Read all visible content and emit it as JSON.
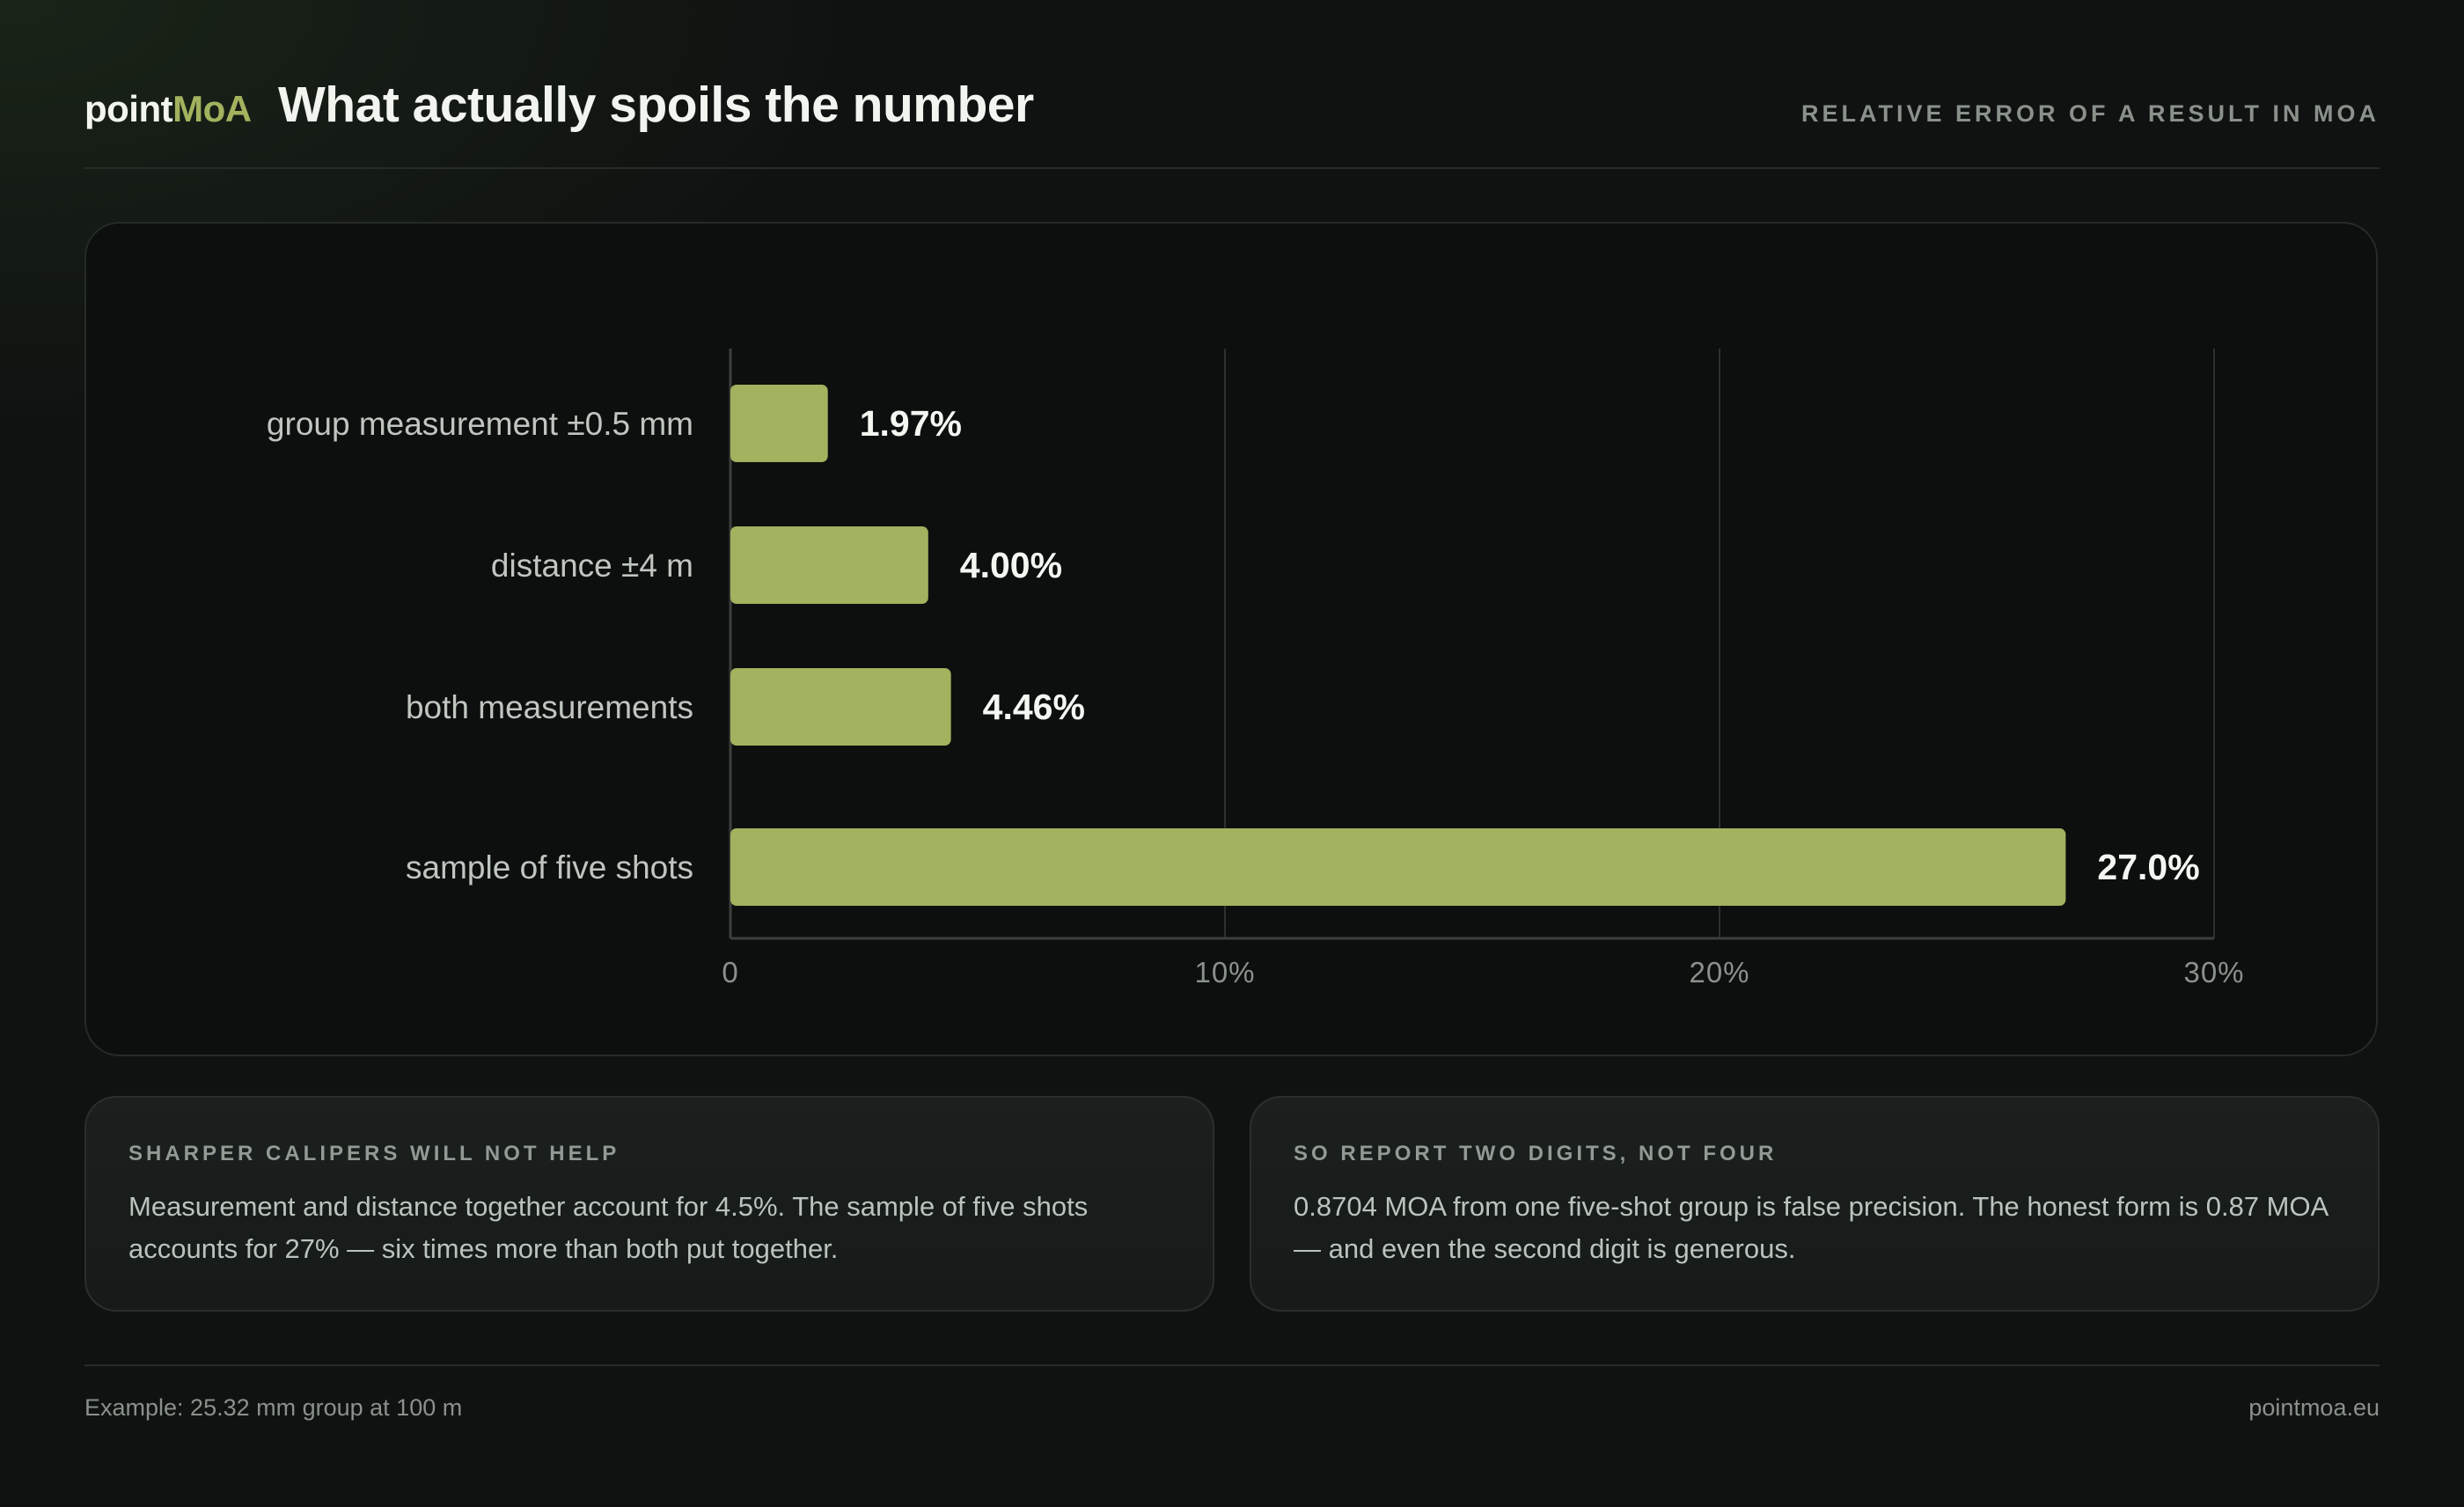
{
  "header": {
    "brand_prefix": "point",
    "brand_suffix": "MoA",
    "title": "What actually spoils the number",
    "kicker": "RELATIVE ERROR OF A RESULT IN MOA"
  },
  "colors": {
    "accent": "#a2b25e",
    "bar": "#a2b25e",
    "background": "#0f1211",
    "card": "#0c0f0e"
  },
  "chart_data": {
    "type": "bar",
    "orientation": "horizontal",
    "categories": [
      "group measurement ±0.5 mm",
      "distance ±4 m",
      "both measurements",
      "sample of five shots"
    ],
    "values": [
      1.97,
      4.0,
      4.46,
      27.0
    ],
    "value_labels": [
      "1.97%",
      "4.00%",
      "4.46%",
      "27.0%"
    ],
    "xlim": [
      0,
      30
    ],
    "x_ticks": [
      0,
      10,
      20,
      30
    ],
    "x_tick_labels": [
      "0",
      "10%",
      "20%",
      "30%"
    ],
    "grid": true,
    "title": "",
    "xlabel": "",
    "ylabel": ""
  },
  "notes": [
    {
      "heading": "SHARPER CALIPERS WILL NOT HELP",
      "body": "Measurement and distance together account for 4.5%. The sample of five shots accounts for 27% — six times more than both put together."
    },
    {
      "heading": "SO REPORT TWO DIGITS, NOT FOUR",
      "body": "0.8704 MOA from one five-shot group is false precision. The honest form is 0.87 MOA — and even the second digit is generous."
    }
  ],
  "footer": {
    "left": "Example: 25.32 mm group at 100 m",
    "right": "pointmoa.eu"
  }
}
